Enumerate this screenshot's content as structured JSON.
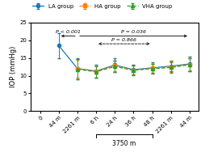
{
  "chart_data": {
    "type": "line",
    "categories": [
      "0",
      "44 m",
      "2261 m",
      "6 h",
      "24 h",
      "36 h",
      "48 h",
      "2261 m",
      "44 m"
    ],
    "ylabel": "IOP (mmHg)",
    "ylim": [
      0,
      25
    ],
    "yticks": [
      0,
      5,
      10,
      15,
      20,
      25
    ],
    "legend": "upper center",
    "series": [
      {
        "name": "LA group",
        "marker": "circle",
        "line_style": "solid",
        "values": [
          null,
          18.5,
          12.0,
          11.3,
          13.0,
          11.7,
          12.2,
          12.7,
          13.3
        ],
        "errors": [
          null,
          3.5,
          3.0,
          1.8,
          2.0,
          1.3,
          1.5,
          1.5,
          2.0
        ]
      },
      {
        "name": "HA group",
        "marker": "square",
        "line_style": "dashed",
        "values": [
          null,
          null,
          12.0,
          11.2,
          12.8,
          11.6,
          12.1,
          12.5,
          13.2
        ],
        "errors": [
          null,
          null,
          2.5,
          1.7,
          1.5,
          1.2,
          1.3,
          1.4,
          1.8
        ]
      },
      {
        "name": "VHA group",
        "marker": "triangle",
        "line_style": "dashed",
        "values": [
          null,
          null,
          11.8,
          11.1,
          12.6,
          11.5,
          12.0,
          12.3,
          13.1
        ],
        "errors": [
          null,
          null,
          2.8,
          1.6,
          1.6,
          1.3,
          1.4,
          1.5,
          1.9
        ]
      }
    ],
    "annotations": [
      {
        "text": "P < 0.001",
        "from": 2,
        "to": 1,
        "y": 21.2,
        "arrow": "end",
        "line_style": "solid"
      },
      {
        "text": "P = 0.036",
        "from": 2,
        "to": 8,
        "y": 21.2,
        "arrow": "end",
        "line_style": "solid"
      },
      {
        "text": "P = 0.866",
        "from": 3,
        "to": 6,
        "y": 19.0,
        "arrow": "both",
        "line_style": "dashed"
      }
    ],
    "brackets": [
      {
        "text": "3750 m",
        "from": 3,
        "to": 6
      }
    ]
  }
}
